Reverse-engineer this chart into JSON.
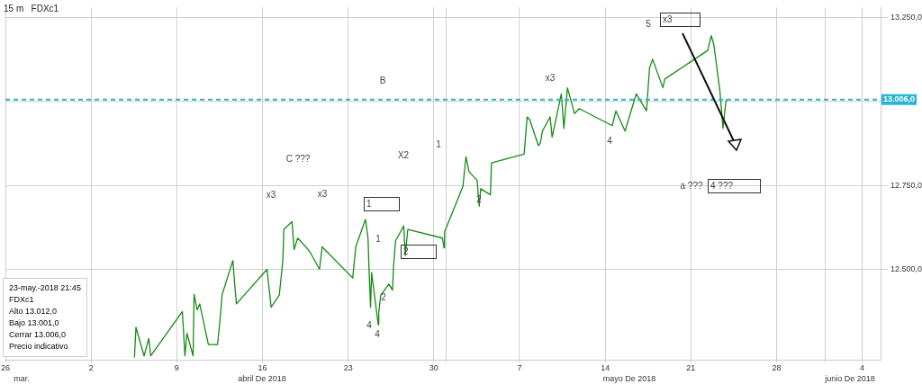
{
  "chart_data": {
    "type": "line",
    "title": "15 m   FDXc1",
    "x": [
      "2018-04-05T13:00",
      "2018-04-05T16:00",
      "2018-04-06T08:00",
      "2018-04-06T17:00",
      "2018-04-06T21:00",
      "2018-04-09T11:00",
      "2018-04-09T16:00",
      "2018-04-09T20:00",
      "2018-04-10T08:00",
      "2018-04-10T10:00",
      "2018-04-10T16:00",
      "2018-04-10T21:00",
      "2018-04-11T14:00",
      "2018-04-12T08:00",
      "2018-04-12T13:00",
      "2018-04-12T17:00",
      "2018-04-13T14:00",
      "2018-04-13T18:00",
      "2018-04-13T21:00",
      "2018-04-16T09:00",
      "2018-04-16T17:00",
      "2018-04-17T09:00",
      "2018-04-17T16:00",
      "2018-04-17T18:00",
      "2018-04-18T10:00",
      "2018-04-18T14:00",
      "2018-04-18T21:00",
      "2018-04-19T13:00",
      "2018-04-19T21:00",
      "2018-04-20T16:00",
      "2018-04-20T21:00",
      "2018-04-23T09:00",
      "2018-04-23T15:00",
      "2018-04-24T10:00",
      "2018-04-24T15:00",
      "2018-04-24T17:00",
      "2018-04-24T20:00",
      "2018-04-24T22:00",
      "2018-04-25T11:00",
      "2018-04-25T12:00",
      "2018-04-25T16:00",
      "2018-04-26T08:00",
      "2018-04-26T15:00",
      "2018-04-26T17:00",
      "2018-04-26T21:00",
      "2018-04-27T13:00",
      "2018-04-27T16:00",
      "2018-04-27T21:00",
      "2018-04-30T17:00",
      "2018-04-30T20:00",
      "2018-04-30T21:00",
      "2018-05-02T09:00",
      "2018-05-02T15:00",
      "2018-05-02T21:00",
      "2018-05-03T13:00",
      "2018-05-03T17:00",
      "2018-05-03T20:00",
      "2018-05-04T15:00",
      "2018-05-04T17:00",
      "2018-05-07T09:00",
      "2018-05-07T15:00",
      "2018-05-07T20:00",
      "2018-05-08T13:00",
      "2018-05-08T17:00",
      "2018-05-08T21:00",
      "2018-05-09T12:00",
      "2018-05-09T16:00",
      "2018-05-10T10:00",
      "2018-05-10T15:00",
      "2018-05-10T22:00",
      "2018-05-11T12:00",
      "2018-05-11T21:00",
      "2018-05-14T14:00",
      "2018-05-14T21:00",
      "2018-05-15T15:00",
      "2018-05-16T13:00",
      "2018-05-17T09:00",
      "2018-05-17T15:00",
      "2018-05-17T21:00",
      "2018-05-18T11:00",
      "2018-05-18T17:00",
      "2018-05-18T21:00",
      "2018-05-22T09:00",
      "2018-05-22T16:00",
      "2018-05-22T21:00",
      "2018-05-23T09:00",
      "2018-05-23T15:00",
      "2018-05-23T20:00",
      "2018-05-23T21:45"
    ],
    "series": [
      {
        "color": "#168a16",
        "values": [
          12237,
          12327,
          12242,
          12294,
          12242,
          12374,
          12242,
          12309,
          12242,
          12425,
          12379,
          12397,
          12276,
          12276,
          12353,
          12425,
          12526,
          12448,
          12397,
          12500,
          12387,
          12423,
          12526,
          12619,
          12642,
          12559,
          12593,
          12567,
          12552,
          12500,
          12567,
          12474,
          12567,
          12649,
          12593,
          12500,
          12387,
          12490,
          12335,
          12371,
          12423,
          12456,
          12438,
          12508,
          12585,
          12629,
          12541,
          12619,
          12593,
          12564,
          12611,
          12747,
          12835,
          12791,
          12765,
          12688,
          12740,
          12722,
          12817,
          12843,
          12954,
          12946,
          12869,
          12876,
          12912,
          12954,
          12894,
          13023,
          12920,
          13041,
          12964,
          12979,
          12928,
          12972,
          12912,
          13023,
          12972,
          13100,
          13126,
          13067,
          13041,
          13067,
          13152,
          13196,
          13170,
          13031,
          12920,
          12990,
          13006
        ]
      }
    ],
    "xlim": [
      "2018-03-26",
      "2018-06-05T12:00"
    ],
    "xticks": [
      {
        "value": "2018-03-26",
        "label": "26"
      },
      {
        "value": "2018-04-02",
        "label": "2"
      },
      {
        "value": "2018-04-09",
        "label": "9"
      },
      {
        "value": "2018-04-16",
        "label": "16"
      },
      {
        "value": "2018-04-23",
        "label": "23"
      },
      {
        "value": "2018-04-30",
        "label": "30"
      },
      {
        "value": "2018-05-01",
        "label": null
      },
      {
        "value": "2018-05-07",
        "label": "7"
      },
      {
        "value": "2018-05-14",
        "label": "14"
      },
      {
        "value": "2018-05-21",
        "label": "21"
      },
      {
        "value": "2018-05-28",
        "label": "28"
      },
      {
        "value": "2018-06-01",
        "label": null
      },
      {
        "value": "2018-06-04",
        "label": "4"
      }
    ],
    "ylim": [
      12230,
      13280
    ],
    "yticks": [
      {
        "value": 12500,
        "label": "12.500,0"
      },
      {
        "value": 12750,
        "label": "12.750,0"
      },
      {
        "value": 13000,
        "label": null
      },
      {
        "value": 13250,
        "label": "13.250,0"
      }
    ],
    "ref_lines": [
      {
        "axis": "y",
        "value": 13006,
        "label": "13.006,0",
        "color": "#29b6d3",
        "line_style": "dashed"
      }
    ],
    "annotations": [
      "5",
      "x3",
      "x3",
      "4",
      "1",
      "X2",
      "B",
      "C ???",
      "x3",
      "x3",
      "1",
      "1",
      "2",
      "2",
      "4",
      "4",
      "2",
      "a ???",
      "4 ???",
      "23-may.-2018 21:45",
      "FDXc1",
      "Alto 13.012,0",
      "Bajo 13.001,0",
      "Cerrar 13.006,0",
      "Precio indicativo",
      "mar.",
      "abril De 2018",
      "mayo De 2018",
      "junio De 2018"
    ],
    "grid": true,
    "legend": false,
    "marker": "none",
    "line_style": "solid"
  }
}
